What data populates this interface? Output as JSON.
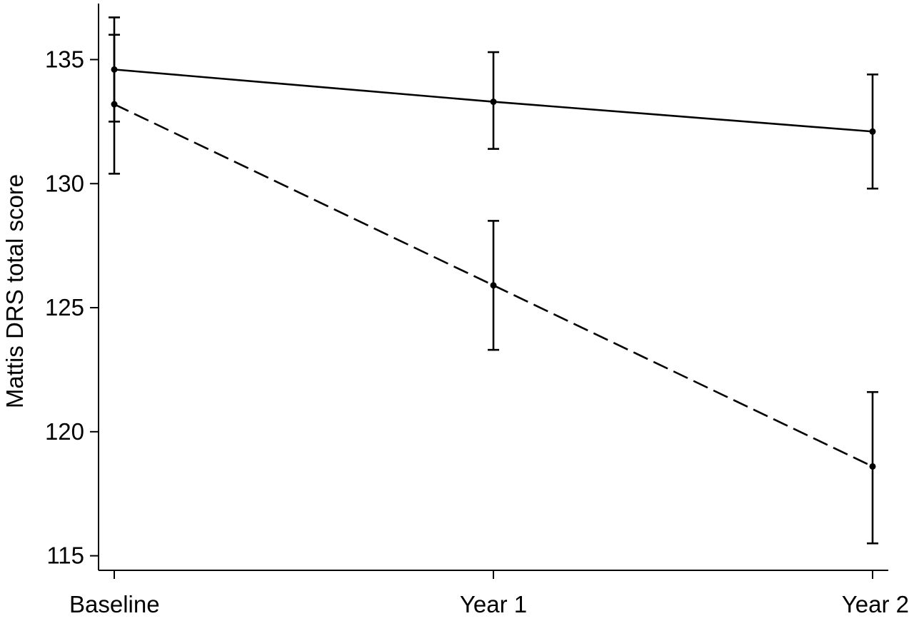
{
  "chart_data": {
    "type": "line",
    "title": "",
    "xlabel": "",
    "ylabel": "Mattis DRS total score",
    "categories": [
      "Baseline",
      "Year 1",
      "Year 2"
    ],
    "y_ticks": [
      115,
      120,
      125,
      130,
      135
    ],
    "ylim": [
      114.5,
      137.2
    ],
    "grid": false,
    "legend": "none",
    "series": [
      {
        "line_style": "solid",
        "color": "#000000",
        "values": [
          134.6,
          133.3,
          132.1
        ],
        "error_low": [
          132.5,
          131.4,
          129.8
        ],
        "error_high": [
          136.7,
          135.3,
          134.4
        ]
      },
      {
        "line_style": "dashed",
        "color": "#000000",
        "values": [
          133.2,
          125.9,
          118.6
        ],
        "error_low": [
          130.4,
          123.3,
          115.5
        ],
        "error_high": [
          136.0,
          128.5,
          121.6
        ]
      }
    ]
  }
}
